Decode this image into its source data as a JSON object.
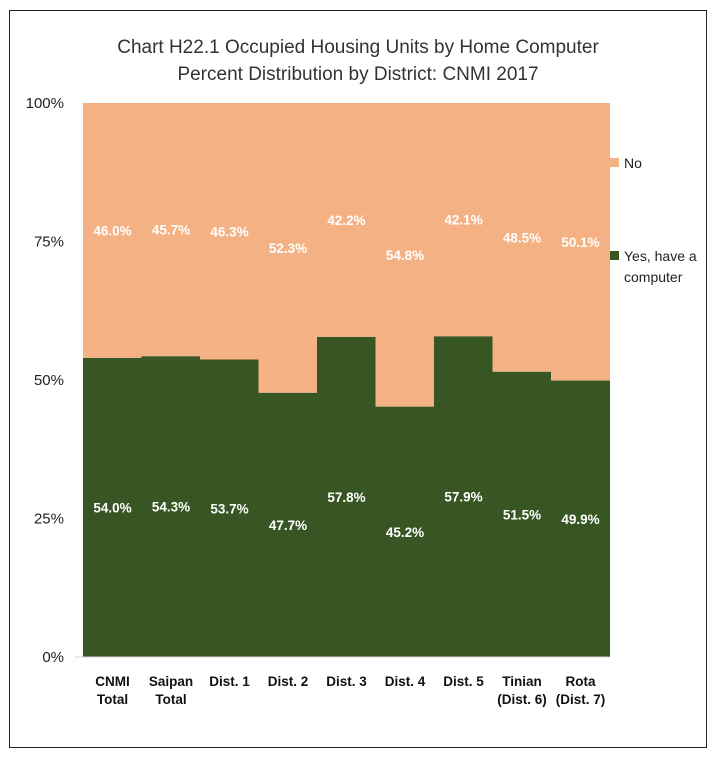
{
  "chart_data": {
    "type": "bar",
    "stacked": true,
    "title_lines": [
      "Chart H22.1 Occupied Housing Units by Home Computer",
      "Percent Distribution by District: CNMI 2017"
    ],
    "categories": [
      [
        "CNMI",
        "Total"
      ],
      [
        "Saipan",
        "Total"
      ],
      [
        "Dist. 1"
      ],
      [
        "Dist. 2"
      ],
      [
        "Dist. 3"
      ],
      [
        "Dist. 4"
      ],
      [
        "Dist. 5"
      ],
      [
        "Tinian",
        "(Dist. 6)"
      ],
      [
        "Rota",
        "(Dist. 7)"
      ]
    ],
    "series": [
      {
        "name_lines": [
          "Yes, have a",
          "computer"
        ],
        "color": "#375623",
        "values": [
          54.0,
          54.3,
          53.7,
          47.7,
          57.8,
          45.2,
          57.9,
          51.5,
          49.9
        ],
        "labels": [
          "54.0%",
          "54.3%",
          "53.7%",
          "47.7%",
          "57.8%",
          "45.2%",
          "57.9%",
          "51.5%",
          "49.9%"
        ]
      },
      {
        "name_lines": [
          "No"
        ],
        "color": "#F4B183",
        "values": [
          46.0,
          45.7,
          46.3,
          52.3,
          42.2,
          54.8,
          42.1,
          48.5,
          50.1
        ],
        "labels": [
          "46.0%",
          "45.7%",
          "46.3%",
          "52.3%",
          "42.2%",
          "54.8%",
          "42.1%",
          "48.5%",
          "50.1%"
        ]
      }
    ],
    "ylim": [
      0,
      100
    ],
    "yticks": [
      0,
      25,
      50,
      75,
      100
    ],
    "ytick_labels": [
      "0%",
      "25%",
      "50%",
      "75%",
      "100%"
    ],
    "grid": false,
    "legend_position": "right"
  }
}
